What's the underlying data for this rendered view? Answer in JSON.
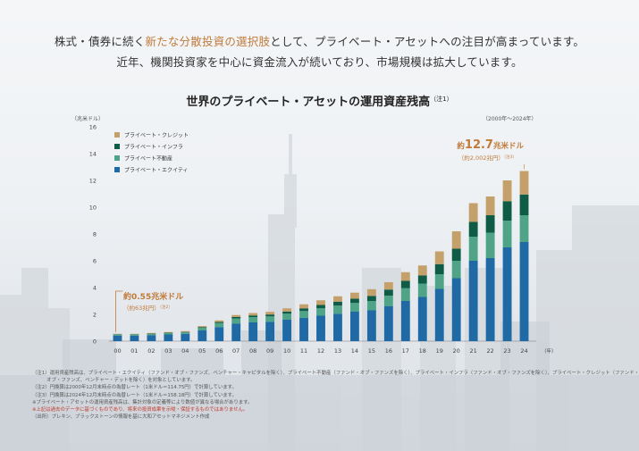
{
  "headline": {
    "line1_a": "株式・債券に続く",
    "line1_highlight": "新たな分散投資の選択肢",
    "line1_b": "として、プライベート・アセットへの注目が高まっています。",
    "line2": "近年、機関投資家を中心に資金流入が続いており、市場規模は拡大しています。"
  },
  "chart_data": {
    "type": "bar",
    "stacked": true,
    "title": "世界のプライベート・アセットの運用資産残高",
    "title_note": "（注1）",
    "unit_label": "（兆米ドル）",
    "period_label": "（2000年～2024年）",
    "xaxis_unit": "（年）",
    "categories": [
      "00",
      "01",
      "02",
      "03",
      "04",
      "05",
      "06",
      "07",
      "08",
      "09",
      "10",
      "11",
      "12",
      "13",
      "14",
      "15",
      "16",
      "17",
      "18",
      "19",
      "20",
      "21",
      "22",
      "23",
      "24"
    ],
    "ylim": [
      0,
      16
    ],
    "yticks": [
      0,
      2,
      4,
      6,
      8,
      10,
      12,
      14,
      16
    ],
    "grid": false,
    "legend_position": "top-left",
    "series": [
      {
        "name": "プライベート・エクイティ",
        "color": "#1f6aa5",
        "values": [
          0.42,
          0.42,
          0.45,
          0.5,
          0.55,
          0.8,
          1.05,
          1.3,
          1.4,
          1.45,
          1.6,
          1.75,
          1.9,
          2.05,
          2.2,
          2.3,
          2.6,
          3.0,
          3.3,
          3.9,
          4.7,
          6.0,
          6.2,
          7.0,
          7.4
        ]
      },
      {
        "name": "プライベート不動産",
        "color": "#4fa487",
        "values": [
          0.08,
          0.08,
          0.09,
          0.1,
          0.1,
          0.2,
          0.3,
          0.4,
          0.4,
          0.4,
          0.45,
          0.5,
          0.55,
          0.6,
          0.65,
          0.7,
          0.8,
          0.95,
          1.0,
          1.1,
          1.3,
          1.8,
          1.9,
          2.0,
          2.0
        ]
      },
      {
        "name": "プライベート・インフラ",
        "color": "#0e5c46",
        "values": [
          0.02,
          0.02,
          0.03,
          0.03,
          0.04,
          0.05,
          0.08,
          0.1,
          0.12,
          0.14,
          0.16,
          0.2,
          0.25,
          0.3,
          0.32,
          0.38,
          0.45,
          0.55,
          0.6,
          0.75,
          0.9,
          1.1,
          1.3,
          1.45,
          1.55
        ]
      },
      {
        "name": "プライベート・クレジット",
        "color": "#c4a06a",
        "values": [
          0.03,
          0.03,
          0.04,
          0.05,
          0.06,
          0.08,
          0.12,
          0.15,
          0.18,
          0.2,
          0.24,
          0.3,
          0.35,
          0.4,
          0.45,
          0.5,
          0.55,
          0.65,
          0.75,
          0.95,
          1.3,
          1.4,
          1.4,
          1.55,
          1.75
        ]
      }
    ],
    "annotations": [
      {
        "main": "約0.55兆米ドル",
        "sub": "（約63兆円）",
        "note": "（注2）"
      },
      {
        "main_prefix": "約",
        "main_value": "12.7",
        "main_suffix": "兆米ドル",
        "sub": "（約2,002兆円）",
        "note": "（注3）"
      }
    ]
  },
  "notes": [
    "（注1）運用資産残高は、プライベート・エクイティ（ファンド・オブ・ファンズ、ベンチャー・キャピタルを除く）、プライベート不動産（ファンド・オブ・ファンズを除く）、プライベート・インフラ（ファンド・オブ・ファンズを除く）、プライベート・クレジット（ファンド・",
    "　　　オブ・ファンズ、ベンチャー・デットを除く）を対象としています。",
    "（注2）円換算は2000年12月末時点の為替レート（1米ドル＝114.75円）で計算しています。",
    "（注3）円換算は2024年12月末時点の為替レート（1米ドル＝158.18円）で計算しています。",
    "※プライベート・アセットの運用資産残高は、集計対象の定義等により数値が異なる場合があります。",
    "※上記は過去のデータに基づくものであり、将来の投資成果を示唆・保証するものではありません。",
    "（出所）プレキン、ブラックストーンの情報を基に大和アセットマネジメント作成"
  ],
  "colors": {
    "accent": "#c17a3a",
    "red_note": "#c0392b"
  }
}
